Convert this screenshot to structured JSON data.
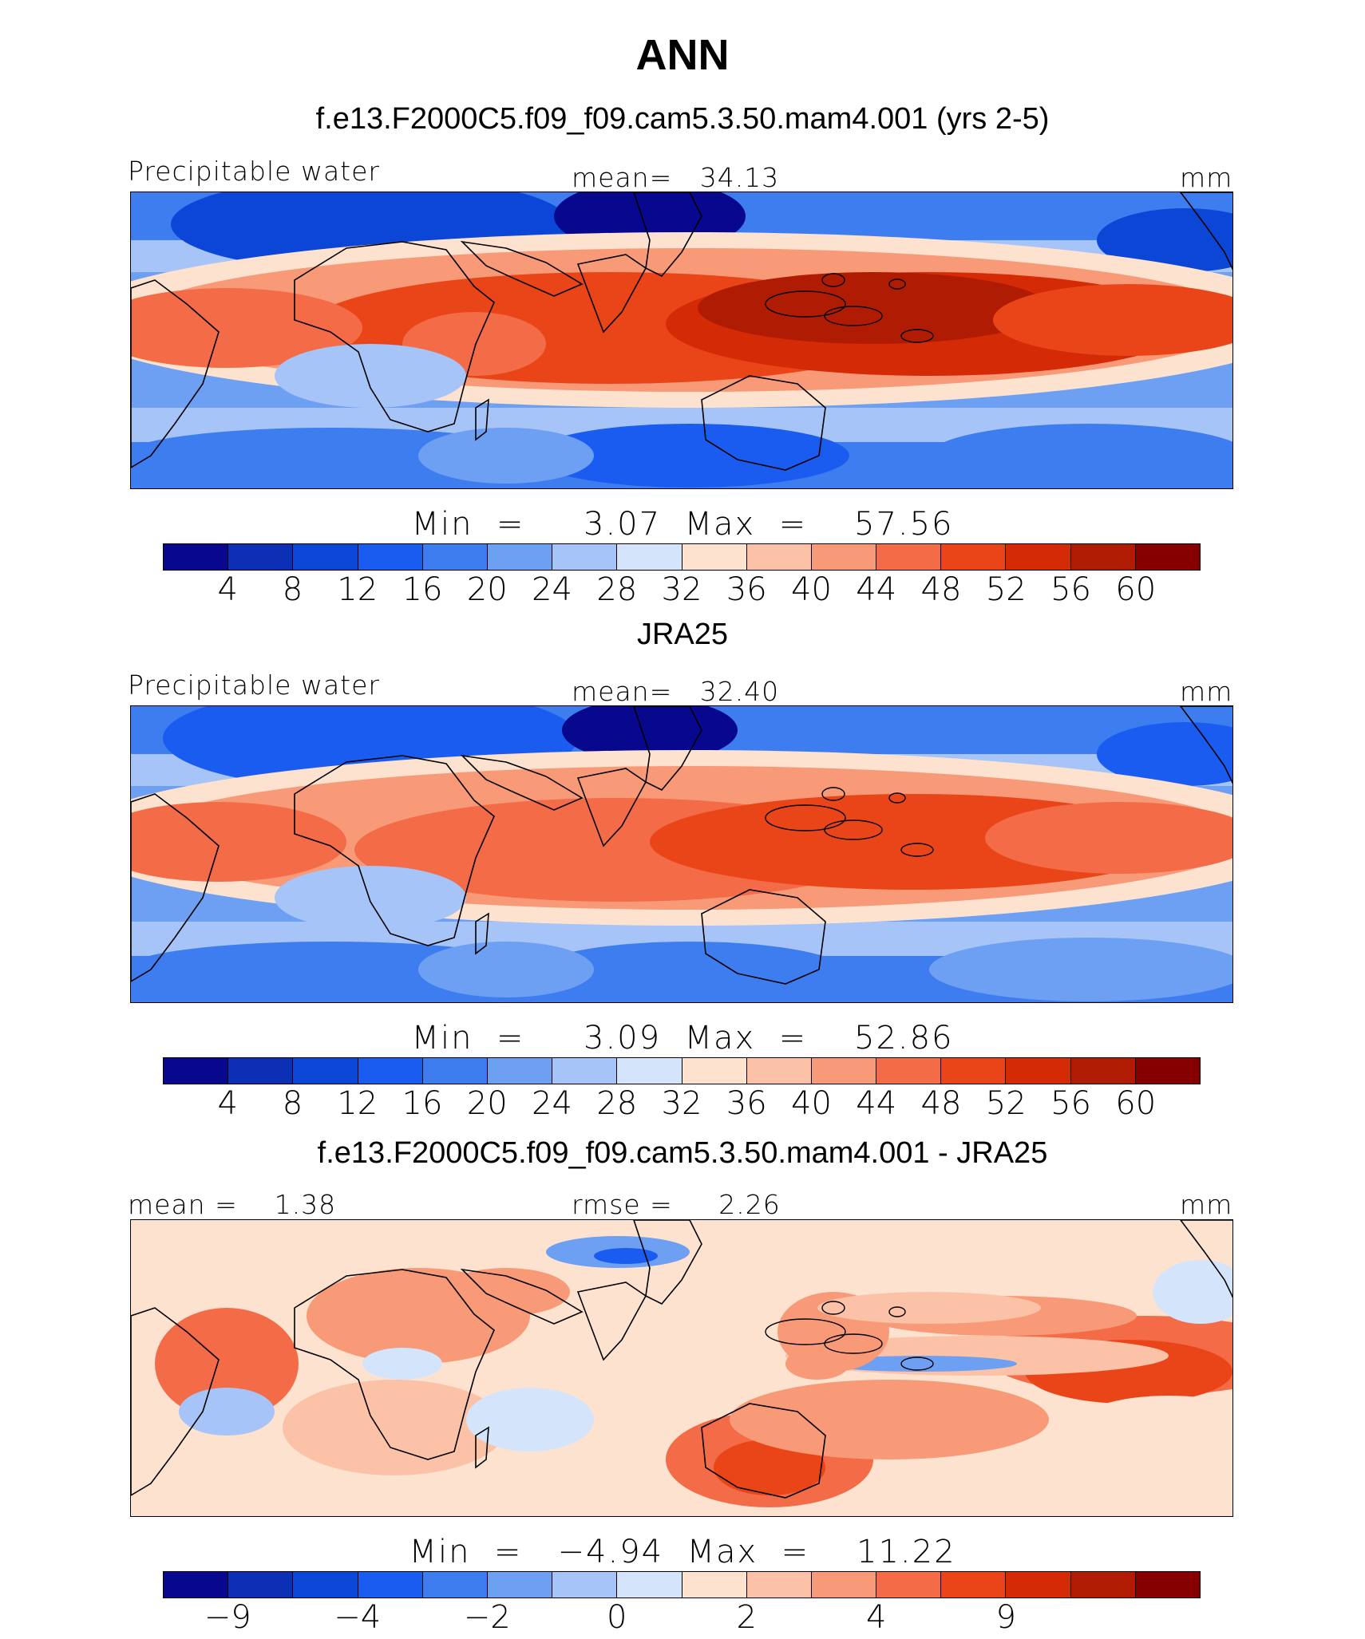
{
  "title": "ANN",
  "colors": [
    "#08088e",
    "#0d2fb5",
    "#0b46d6",
    "#1a5cf0",
    "#3d7df0",
    "#6d9ff2",
    "#a6c4f7",
    "#d4e5fb",
    "#fde3cf",
    "#fbc2a8",
    "#f89a77",
    "#f46b47",
    "#ea4518",
    "#d52a06",
    "#b01b04",
    "#870000"
  ],
  "panels": [
    {
      "subtitle": "f.e13.F2000C5.f09_f09.cam5.3.50.mam4.001 (yrs 2-5)",
      "left_label": "Precipitable water",
      "center_label": "mean=   34.13",
      "right_label": "mm",
      "minmax": "Min  =     3.07  Max  =    57.56",
      "colorbar_ticks": [
        "4",
        "8",
        "12",
        "16",
        "20",
        "24",
        "28",
        "32",
        "36",
        "40",
        "44",
        "48",
        "52",
        "56",
        "60"
      ],
      "field": {
        "min": 3.07,
        "max": 57.56,
        "mean": 34.13
      }
    },
    {
      "subtitle": "JRA25",
      "left_label": "Precipitable water",
      "center_label": "mean=   32.40",
      "right_label": "mm",
      "minmax": "Min  =     3.09  Max  =    52.86",
      "colorbar_ticks": [
        "4",
        "8",
        "12",
        "16",
        "20",
        "24",
        "28",
        "32",
        "36",
        "40",
        "44",
        "48",
        "52",
        "56",
        "60"
      ],
      "field": {
        "min": 3.09,
        "max": 52.86,
        "mean": 32.4
      }
    },
    {
      "subtitle": "f.e13.F2000C5.f09_f09.cam5.3.50.mam4.001 - JRA25",
      "left_label": "mean =    1.38",
      "center_label": "rmse =     2.26",
      "right_label": "mm",
      "minmax": "Min  =   −4.94  Max  =    11.22",
      "colorbar_ticks": [
        "−9",
        "",
        "−4",
        "",
        "−2",
        "",
        "0",
        "",
        "2",
        "",
        "4",
        "",
        "9",
        "",
        ""
      ],
      "field": {
        "min": -4.94,
        "max": 11.22,
        "mean": 1.38,
        "rmse": 2.26
      }
    }
  ],
  "chart_data": {
    "type": "heatmap",
    "title": "ANN",
    "maps": [
      {
        "name": "f.e13.F2000C5.f09_f09.cam5.3.50.mam4.001 (yrs 2-5)",
        "variable": "Precipitable water",
        "units": "mm",
        "mean": 34.13,
        "min": 3.07,
        "max": 57.56,
        "levels": [
          4,
          8,
          12,
          16,
          20,
          24,
          28,
          32,
          36,
          40,
          44,
          48,
          52,
          56,
          60
        ]
      },
      {
        "name": "JRA25",
        "variable": "Precipitable water",
        "units": "mm",
        "mean": 32.4,
        "min": 3.09,
        "max": 52.86,
        "levels": [
          4,
          8,
          12,
          16,
          20,
          24,
          28,
          32,
          36,
          40,
          44,
          48,
          52,
          56,
          60
        ]
      },
      {
        "name": "f.e13.F2000C5.f09_f09.cam5.3.50.mam4.001 - JRA25",
        "units": "mm",
        "mean": 1.38,
        "rmse": 2.26,
        "min": -4.94,
        "max": 11.22,
        "level_labels": [
          -9,
          -4,
          -2,
          0,
          2,
          4,
          9
        ]
      }
    ]
  }
}
